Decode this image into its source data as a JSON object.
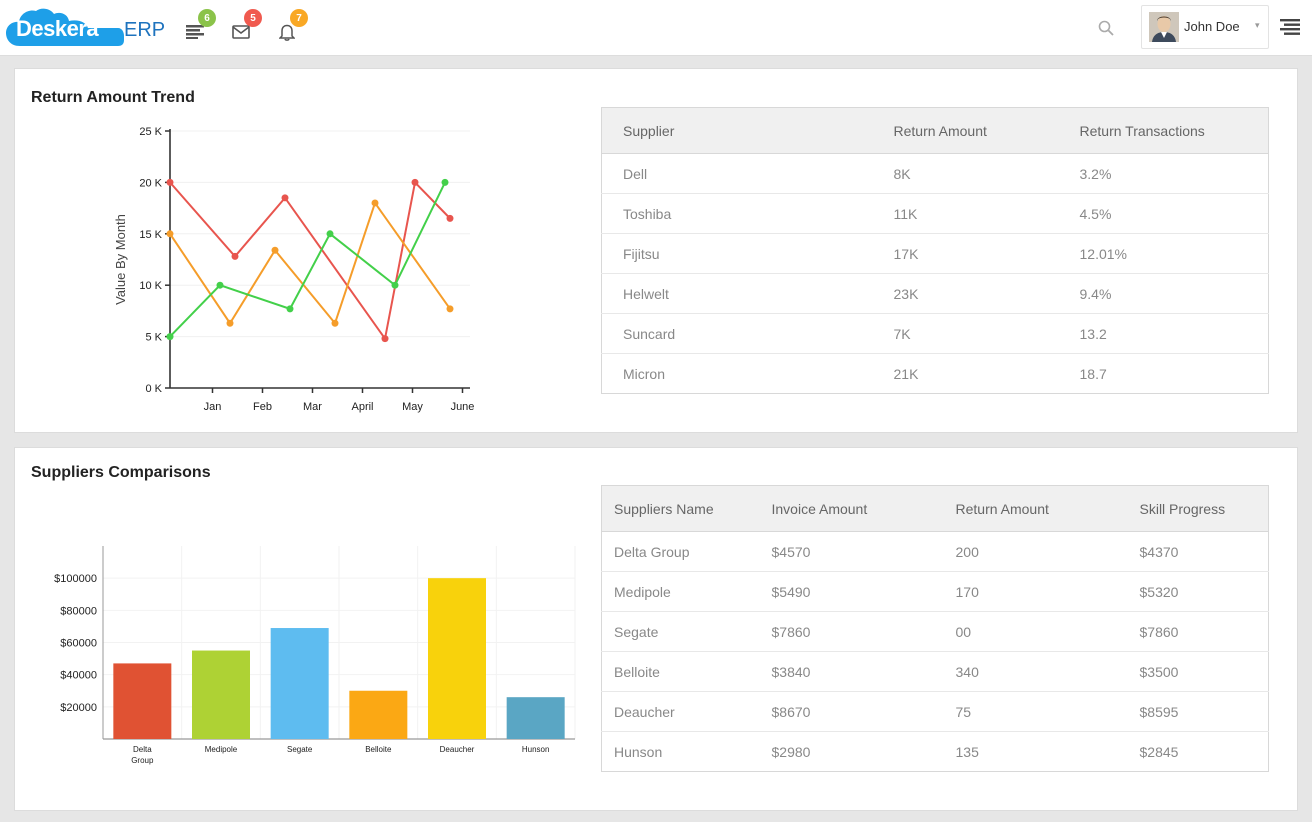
{
  "header": {
    "logo_brand": "Deskera",
    "logo_suffix": "ERP",
    "badges": {
      "tasks": "6",
      "messages": "5",
      "notifications": "7"
    },
    "user_name": "John Doe"
  },
  "colors": {
    "brand": "#1e9fe8",
    "badge_green": "#8bc34a",
    "badge_red": "#f05a4f",
    "badge_orange": "#f9a825"
  },
  "trend": {
    "title": "Return Amount Trend",
    "table": {
      "headers": [
        "Supplier",
        "Return Amount",
        "Return Transactions"
      ],
      "rows": [
        [
          "Dell",
          "8K",
          "3.2%"
        ],
        [
          "Toshiba",
          "11K",
          "4.5%"
        ],
        [
          "Fijitsu",
          "17K",
          "12.01%"
        ],
        [
          "Helwelt",
          "23K",
          "9.4%"
        ],
        [
          "Suncard",
          "7K",
          "13.2"
        ],
        [
          "Micron",
          "21K",
          "18.7"
        ]
      ]
    }
  },
  "comparisons": {
    "title": "Suppliers Comparisons",
    "table": {
      "headers": [
        "Suppliers Name",
        "Invoice Amount",
        "Return Amount",
        "Skill Progress"
      ],
      "rows": [
        [
          "Delta Group",
          "$4570",
          "200",
          "$4370"
        ],
        [
          "Medipole",
          "$5490",
          "170",
          "$5320"
        ],
        [
          "Segate",
          "$7860",
          "00",
          "$7860"
        ],
        [
          "Belloite",
          "$3840",
          "340",
          "$3500"
        ],
        [
          "Deaucher",
          "$8670",
          "75",
          "$8595"
        ],
        [
          "Hunson",
          "$2980",
          "135",
          "$2845"
        ]
      ]
    }
  },
  "chart_data": [
    {
      "type": "line",
      "title": "",
      "xlabel": "",
      "ylabel": "Value By Month",
      "categories": [
        "Jan",
        "Feb",
        "Mar",
        "April",
        "May",
        "June"
      ],
      "ylim": [
        0,
        25000
      ],
      "yticks": [
        "0 K",
        "5 K",
        "10 K",
        "15 K",
        "20 K",
        "25 K"
      ],
      "series": [
        {
          "color": "#e8554e",
          "x": [
            0,
            1.3,
            2.3,
            4.3,
            4.9,
            5.6
          ],
          "values": [
            20000,
            12800,
            18500,
            4800,
            20000,
            16500
          ]
        },
        {
          "color": "#f59d2a",
          "x": [
            0,
            1.2,
            2.1,
            3.3,
            4.1,
            5.6
          ],
          "values": [
            15000,
            6300,
            13400,
            6300,
            18000,
            7700
          ]
        },
        {
          "color": "#43d04a",
          "x": [
            0,
            1.0,
            2.4,
            3.2,
            4.5,
            5.5
          ],
          "values": [
            5000,
            10000,
            7700,
            15000,
            10000,
            20000
          ]
        }
      ]
    },
    {
      "type": "bar",
      "title": "",
      "xlabel": "",
      "ylabel": "",
      "categories": [
        "Delta Group",
        "Medipole",
        "Segate",
        "Belloite",
        "Deaucher",
        "Hunson"
      ],
      "values": [
        47000,
        55000,
        69000,
        30000,
        100000,
        26000
      ],
      "colors": [
        "#e05233",
        "#aed234",
        "#5ebcf0",
        "#fba814",
        "#f8d20c",
        "#5aa6c4"
      ],
      "ylim": [
        0,
        120000
      ],
      "yticks": [
        "$20000",
        "$40000",
        "$60000",
        "$80000",
        "$100000"
      ],
      "ytick_values": [
        20000,
        40000,
        60000,
        80000,
        100000
      ]
    }
  ]
}
